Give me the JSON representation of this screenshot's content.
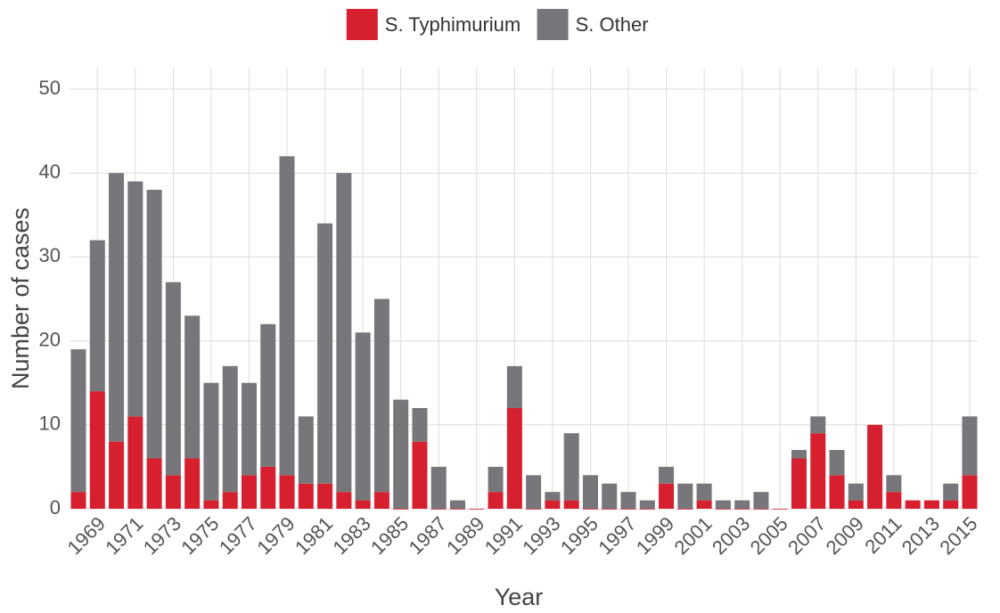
{
  "chart_data": {
    "type": "bar",
    "stacked": true,
    "x_label": "Year",
    "y_label": "Number of cases",
    "categories": [
      null,
      "1969",
      null,
      "1971",
      null,
      "1973",
      null,
      "1975",
      null,
      "1977",
      null,
      "1979",
      null,
      "1981",
      null,
      "1983",
      null,
      "1985",
      null,
      "1987",
      null,
      "1989",
      null,
      "1991",
      null,
      "1993",
      null,
      "1995",
      null,
      "1997",
      null,
      "1999",
      null,
      "2001",
      null,
      "2003",
      null,
      "2005",
      null,
      "2007",
      null,
      "2009",
      null,
      "2011",
      null,
      "2013",
      null,
      "2015"
    ],
    "series": [
      {
        "name": "S. Typhimurium",
        "color": "#d7202f",
        "values": [
          2,
          14,
          8,
          11,
          6,
          4,
          6,
          1,
          2,
          4,
          5,
          4,
          3,
          3,
          2,
          1,
          2,
          0,
          8,
          0,
          0,
          0,
          2,
          12,
          0,
          1,
          1,
          0,
          0,
          0,
          0,
          3,
          0,
          1,
          0,
          0,
          0,
          0,
          6,
          9,
          4,
          1,
          10,
          2,
          1,
          1,
          1,
          4
        ]
      },
      {
        "name": "S. Other",
        "color": "#77777b",
        "values": [
          17,
          18,
          32,
          28,
          32,
          23,
          17,
          14,
          15,
          11,
          17,
          38,
          8,
          31,
          38,
          20,
          23,
          13,
          4,
          5,
          1,
          0,
          3,
          5,
          4,
          1,
          8,
          4,
          3,
          2,
          1,
          2,
          3,
          2,
          1,
          1,
          2,
          0,
          1,
          2,
          3,
          2,
          0,
          2,
          0,
          0,
          2,
          7
        ]
      }
    ],
    "ylim": [
      0,
      50
    ],
    "yticks": [
      0,
      10,
      20,
      30,
      40,
      50
    ],
    "grid": true,
    "legend": "top"
  }
}
